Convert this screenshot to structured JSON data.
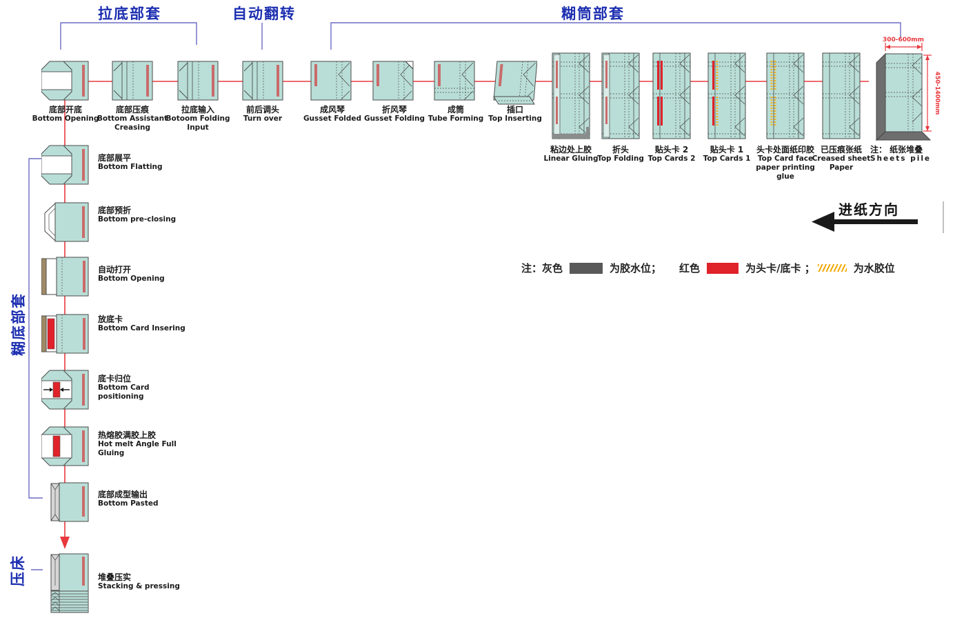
{
  "sections": {
    "top": [
      {
        "label": "拉底部套"
      },
      {
        "label": "自动翻转"
      },
      {
        "label": "糊筒部套"
      }
    ],
    "side": [
      {
        "label": "糊底部套"
      },
      {
        "label": "压床"
      }
    ]
  },
  "top_row": [
    {
      "zh": "底部开底",
      "en": "Bottom Opening",
      "icon": "bag-octagon"
    },
    {
      "zh": "底部压痕",
      "en": "Bottom Assistant Creasing",
      "icon": "bag-fold"
    },
    {
      "zh": "拉底输入",
      "en": "Botoom Folding Input",
      "icon": "bag-fold"
    },
    {
      "zh": "前后调头",
      "en": "Turn over",
      "icon": "bag-fold"
    },
    {
      "zh": "成风琴",
      "en": "Gusset Folded",
      "icon": "sheet-square"
    },
    {
      "zh": "折风琴",
      "en": "Gusset Folding",
      "icon": "sheet-square-curl"
    },
    {
      "zh": "成筒",
      "en": "Tube Forming",
      "icon": "sheet-square-tube"
    },
    {
      "zh": "插口",
      "en": "Top Inserting",
      "icon": "sheet-square-skew"
    },
    {
      "zh": "粘边处上胶",
      "en": "Linear Gluing",
      "icon": "sheet-tall-gluing"
    },
    {
      "zh": "折头",
      "en": "Top Folding",
      "icon": "sheet-tall-folding"
    },
    {
      "zh": "贴头卡 2",
      "en": "Top Cards 2",
      "icon": "sheet-tall-cards2"
    },
    {
      "zh": "贴头卡 1",
      "en": "Top Cards 1",
      "icon": "sheet-tall-cards1"
    },
    {
      "zh": "头卡处面纸印胶",
      "en": "Top Card face paper printing glue",
      "icon": "sheet-tall-faceglue"
    },
    {
      "zh": "已压痕张纸",
      "en": "Creased sheet Paper",
      "icon": "sheet-tall-plain"
    }
  ],
  "pile": {
    "zh": "注： 纸张堆叠",
    "en": "Sheets pile",
    "width_label": "300-600mm",
    "height_label": "450-1400mm"
  },
  "left_col": [
    {
      "zh": "底部展平",
      "en": "Bottom Flatting",
      "icon": "bag-octagon"
    },
    {
      "zh": "底部预折",
      "en": "Bottom pre-closing",
      "icon": "bag-preclose"
    },
    {
      "zh": "自动打开",
      "en": "Bottom Opening",
      "icon": "bag-open"
    },
    {
      "zh": "放底卡",
      "en": "Bottom Card Insering",
      "icon": "bag-card-insert"
    },
    {
      "zh": "底卡归位",
      "en": "Bottom Card positioning",
      "icon": "bag-card-position"
    },
    {
      "zh": "热熔胶满胶上胶",
      "en": "Hot melt Angle Full Gluing",
      "icon": "bag-hotmelt"
    },
    {
      "zh": "底部成型输出",
      "en": "Bottom Pasted",
      "icon": "bag-pasted"
    },
    {
      "zh": "堆叠压实",
      "en": "Stacking & pressing",
      "icon": "bag-stacked"
    }
  ],
  "legend": {
    "note": "注：",
    "items": [
      {
        "name": "灰色",
        "desc": "为胶水位；",
        "swatch": "gray"
      },
      {
        "name": "红色",
        "desc": "为头卡/底卡 ；",
        "swatch": "red"
      },
      {
        "name": "",
        "desc": "为水胶位",
        "swatch": "hatch"
      }
    ]
  },
  "feed_direction": "进纸方向",
  "colors": {
    "sheet_fill": "#b9ded7",
    "sheet_border": "#4a4a4a",
    "stripe_salmon": "#c96b6b",
    "card_red": "#e0222a",
    "glue_gray": "#8c8c8c",
    "water_glue_yellow": "#f0b42c",
    "flow_red": "#e8383d",
    "bracket_blue": "#6b6bc4",
    "header_blue": "#1c2eb0",
    "dimension_red": "#e8383d",
    "pile_side_gray": "#6e6e6e"
  }
}
